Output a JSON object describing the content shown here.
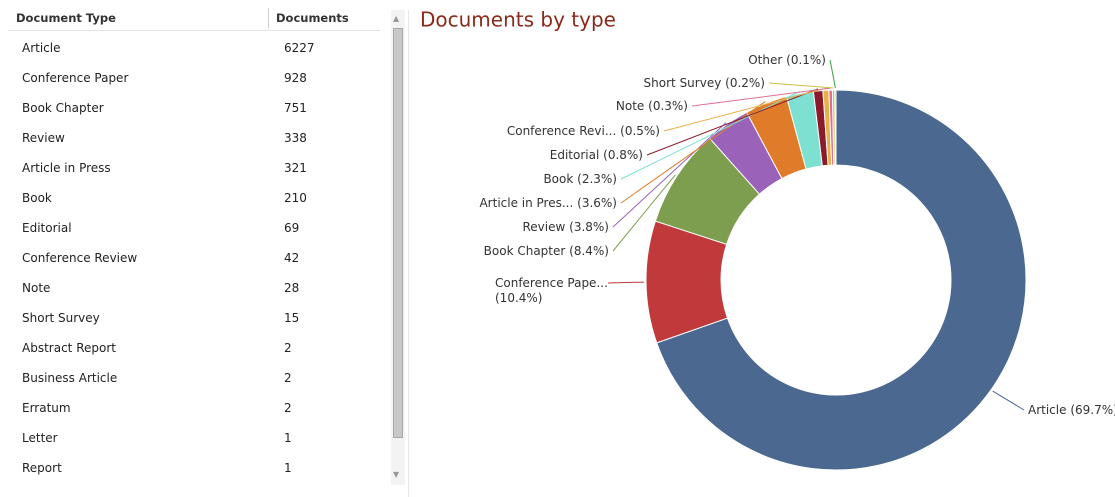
{
  "table": {
    "header": [
      "Document Type",
      "Documents"
    ],
    "rows": [
      [
        "Article",
        "6227"
      ],
      [
        "Conference Paper",
        "928"
      ],
      [
        "Book Chapter",
        "751"
      ],
      [
        "Review",
        "338"
      ],
      [
        "Article in Press",
        "321"
      ],
      [
        "Book",
        "210"
      ],
      [
        "Editorial",
        "69"
      ],
      [
        "Conference Review",
        "42"
      ],
      [
        "Note",
        "28"
      ],
      [
        "Short Survey",
        "15"
      ],
      [
        "Abstract Report",
        "2"
      ],
      [
        "Business Article",
        "2"
      ],
      [
        "Erratum",
        "2"
      ],
      [
        "Letter",
        "1"
      ],
      [
        "Report",
        "1"
      ]
    ]
  },
  "chart_data": {
    "type": "donut",
    "title": "Documents by type",
    "categories": [
      "Article",
      "Conference Pape...",
      "Book Chapter",
      "Review",
      "Article in Pres...",
      "Book",
      "Editorial",
      "Conference Revi...",
      "Note",
      "Short Survey",
      "Other"
    ],
    "values": [
      69.7,
      10.4,
      8.4,
      3.8,
      3.6,
      2.3,
      0.8,
      0.5,
      0.3,
      0.2,
      0.1
    ],
    "value_labels": [
      "(69.7%)",
      "(10.4%)",
      "(8.4%)",
      "(3.8%)",
      "(3.6%)",
      "(2.3%)",
      "(0.8%)",
      "(0.5%)",
      "(0.3%)",
      "(0.2%)",
      "(0.1%)"
    ],
    "colors": [
      "#4a6890",
      "#c0393b",
      "#7d9e4e",
      "#9a62b8",
      "#e07b2a",
      "#7ee0d0",
      "#8b1a2a",
      "#e8b04a",
      "#e07090",
      "#c8c040",
      "#40a040"
    ]
  }
}
